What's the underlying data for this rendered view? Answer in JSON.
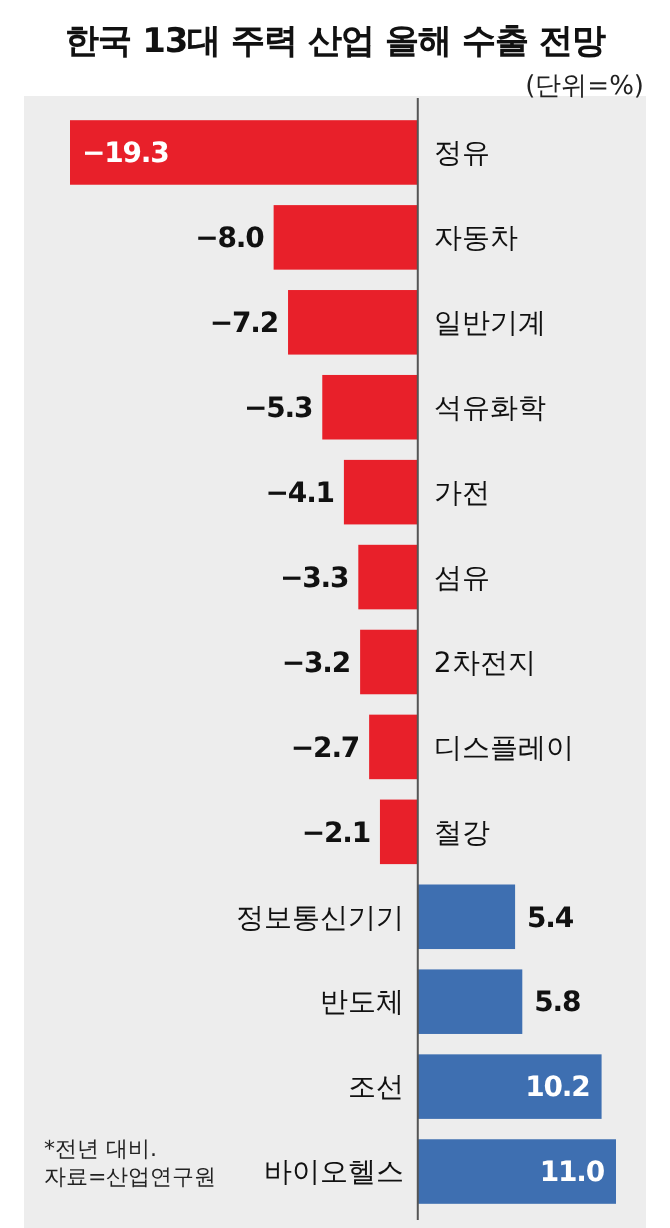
{
  "chart_data": {
    "type": "bar",
    "orientation": "horizontal",
    "title": "한국 13대 주력 산업 올해 수출 전망",
    "subtitle": "(단위=%)",
    "categories": [
      "정유",
      "자동차",
      "일반기계",
      "석유화학",
      "가전",
      "섬유",
      "2차전지",
      "디스플레이",
      "철강",
      "정보통신기기",
      "반도체",
      "조선",
      "바이오헬스"
    ],
    "values": [
      -19.3,
      -8.0,
      -7.2,
      -5.3,
      -4.1,
      -3.3,
      -3.2,
      -2.7,
      -2.1,
      5.4,
      5.8,
      10.2,
      11.0
    ],
    "value_labels": [
      "−19.3",
      "−8.0",
      "−7.2",
      "−5.3",
      "−4.1",
      "−3.3",
      "−3.2",
      "−2.7",
      "−2.1",
      "5.4",
      "5.8",
      "10.2",
      "11.0"
    ],
    "colors": [
      "#e8202a",
      "#e8202a",
      "#e8202a",
      "#e8202a",
      "#e8202a",
      "#e8202a",
      "#e8202a",
      "#e8202a",
      "#e8202a",
      "#3e6fb1",
      "#3e6fb1",
      "#3e6fb1",
      "#3e6fb1"
    ],
    "tick_labels": "y",
    "annotations": [
      "*전년 대비. 자료=산업연구원"
    ]
  }
}
